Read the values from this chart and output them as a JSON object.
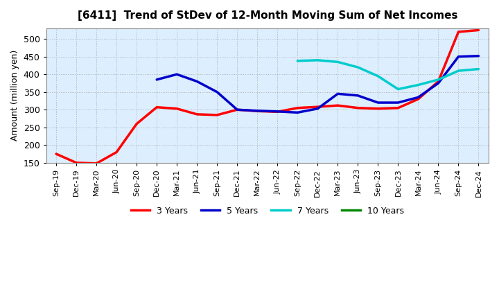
{
  "title": "[6411]  Trend of StDev of 12-Month Moving Sum of Net Incomes",
  "ylabel": "Amount (million yen)",
  "background_color": "#ffffff",
  "grid_color": "#aaaaaa",
  "ylim": [
    150,
    530
  ],
  "yticks": [
    150,
    200,
    250,
    300,
    350,
    400,
    450,
    500
  ],
  "xtick_labels": [
    "Sep-19",
    "Dec-19",
    "Mar-20",
    "Jun-20",
    "Sep-20",
    "Dec-20",
    "Mar-21",
    "Jun-21",
    "Sep-21",
    "Dec-21",
    "Mar-22",
    "Jun-22",
    "Sep-22",
    "Dec-22",
    "Mar-23",
    "Jun-23",
    "Sep-23",
    "Dec-23",
    "Mar-24",
    "Jun-24",
    "Sep-24",
    "Dec-24"
  ],
  "series": {
    "3 Years": {
      "color": "#ff0000",
      "x_indices": [
        0,
        1,
        2,
        3,
        4,
        5,
        6,
        7,
        8,
        9,
        10,
        11,
        12,
        13,
        14,
        15,
        16,
        17,
        18,
        19,
        20,
        21
      ],
      "values": [
        175,
        150,
        148,
        180,
        260,
        307,
        303,
        287,
        285,
        300,
        296,
        294,
        305,
        308,
        312,
        305,
        303,
        305,
        330,
        380,
        520,
        525
      ]
    },
    "5 Years": {
      "color": "#0000cc",
      "x_indices": [
        5,
        6,
        7,
        8,
        9,
        10,
        11,
        12,
        13,
        14,
        15,
        16,
        17,
        18,
        19,
        20,
        21
      ],
      "values": [
        385,
        400,
        380,
        350,
        300,
        297,
        295,
        292,
        303,
        345,
        340,
        320,
        320,
        335,
        375,
        450,
        452
      ]
    },
    "7 Years": {
      "color": "#00cccc",
      "x_indices": [
        12,
        13,
        14,
        15,
        16,
        17,
        18,
        19,
        20,
        21
      ],
      "values": [
        438,
        440,
        435,
        420,
        395,
        358,
        370,
        385,
        410,
        415
      ]
    },
    "10 Years": {
      "color": "#008800",
      "x_indices": [],
      "values": []
    }
  },
  "legend_order": [
    "3 Years",
    "5 Years",
    "7 Years",
    "10 Years"
  ]
}
